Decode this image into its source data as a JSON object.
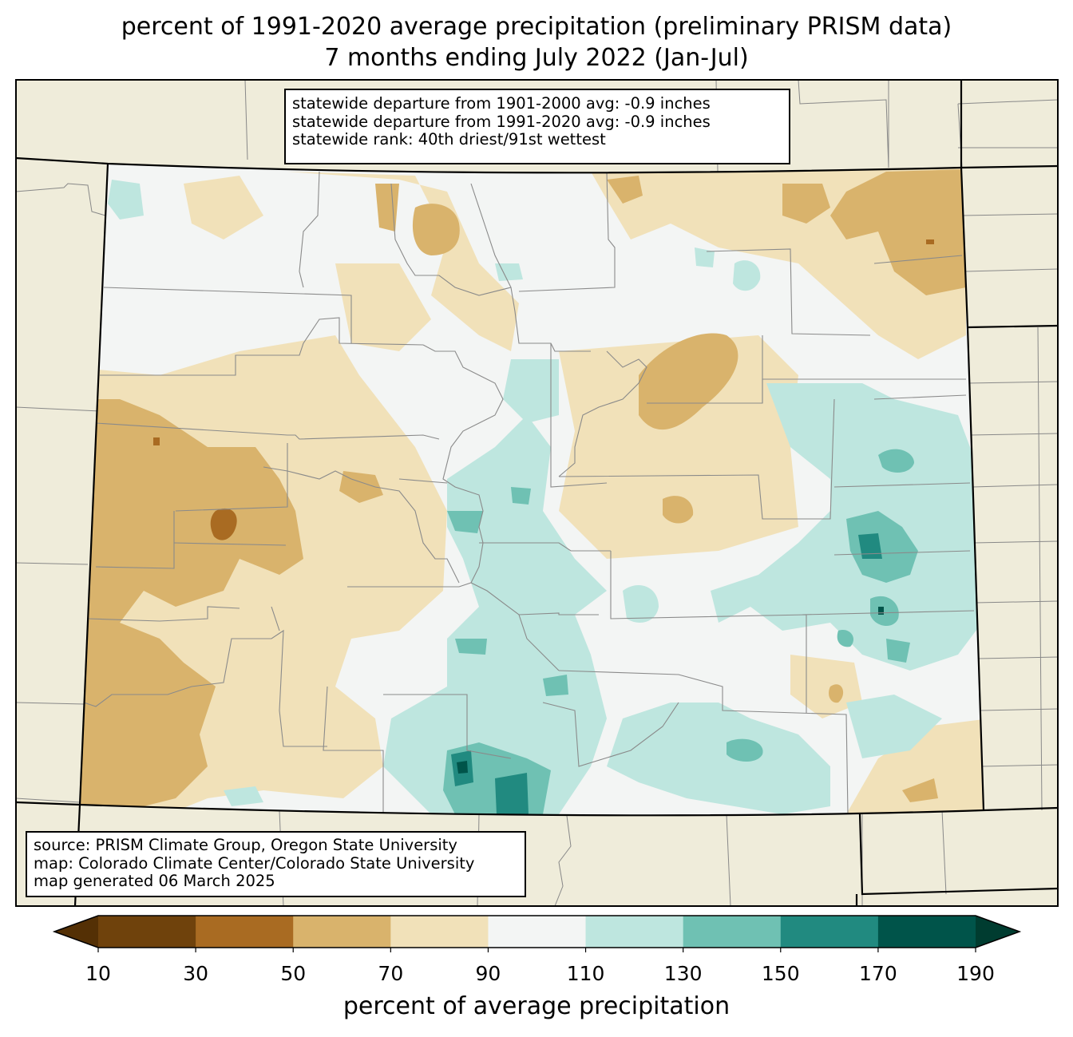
{
  "title": {
    "line1": "percent of 1991-2020 average precipitation (preliminary PRISM data)",
    "line2": "7 months ending July 2022 (Jan-Jul)"
  },
  "stats": {
    "line1": "statewide departure from 1901-2000 avg: -0.9 inches",
    "line2": "statewide departure from 1991-2020 avg: -0.9 inches",
    "line3": "statewide rank: 40th driest/91st wettest"
  },
  "source": {
    "line1": "source: PRISM Climate Group, Oregon State University",
    "line2": "map: Colorado Climate Center/Colorado State University",
    "line3": "map generated 06 March 2025"
  },
  "colorbar": {
    "label": "percent of average precipitation",
    "ticks": [
      "10",
      "30",
      "50",
      "70",
      "90",
      "110",
      "130",
      "150",
      "170",
      "190"
    ],
    "under_color": "#543005",
    "over_color": "#003c30",
    "colors": [
      "#6f420c",
      "#a96b22",
      "#d9b36c",
      "#f1e1b9",
      "#f3f5f4",
      "#bee6df",
      "#6fc1b3",
      "#218a80",
      "#00544a"
    ]
  },
  "map": {
    "land_color": "#efecda",
    "state": "Colorado"
  }
}
